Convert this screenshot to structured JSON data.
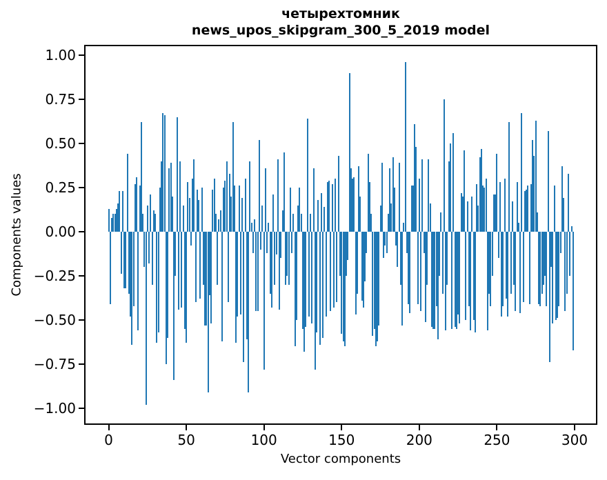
{
  "title": {
    "line1": "четырехтомник",
    "line2": "news_upos_skipgram_300_5_2019 model"
  },
  "chart_data": {
    "type": "bar",
    "title": "четырехтомник",
    "subtitle": "news_upos_skipgram_300_5_2019 model",
    "xlabel": "Vector components",
    "ylabel": "Components values",
    "bar_color": "#1f77b4",
    "grid": false,
    "legend": "none",
    "xlim": [
      -15.4,
      314.8
    ],
    "ylim": [
      -1.09,
      1.06
    ],
    "x_ticks": [
      {
        "v": 0,
        "label": "0"
      },
      {
        "v": 50,
        "label": "50"
      },
      {
        "v": 100,
        "label": "100"
      },
      {
        "v": 150,
        "label": "150"
      },
      {
        "v": 200,
        "label": "200"
      },
      {
        "v": 250,
        "label": "250"
      },
      {
        "v": 300,
        "label": "300"
      }
    ],
    "y_ticks": [
      {
        "v": 1.0,
        "label": "1.00"
      },
      {
        "v": 0.75,
        "label": "0.75"
      },
      {
        "v": 0.5,
        "label": "0.50"
      },
      {
        "v": 0.25,
        "label": "0.25"
      },
      {
        "v": 0.0,
        "label": "0.00"
      },
      {
        "v": -0.25,
        "label": "−0.25"
      },
      {
        "v": -0.5,
        "label": "−0.50"
      },
      {
        "v": -0.75,
        "label": "−0.75"
      },
      {
        "v": -1.0,
        "label": "−1.00"
      }
    ],
    "n_components": 300,
    "values": [
      0.13,
      -0.41,
      0.08,
      0.1,
      0.1,
      0.13,
      0.16,
      0.23,
      -0.24,
      0.23,
      -0.32,
      -0.32,
      0.44,
      -0.35,
      -0.48,
      -0.64,
      -0.42,
      0.27,
      0.31,
      -0.56,
      0.26,
      0.62,
      0.1,
      -0.2,
      -0.98,
      0.15,
      -0.18,
      0.21,
      -0.3,
      0.12,
      0.1,
      -0.63,
      -0.57,
      0.25,
      0.4,
      0.67,
      0.66,
      -0.75,
      -0.6,
      0.36,
      0.39,
      0.2,
      -0.84,
      -0.25,
      0.65,
      -0.44,
      0.4,
      -0.43,
      0.15,
      -0.55,
      -0.63,
      0.28,
      0.19,
      -0.08,
      0.3,
      0.41,
      -0.4,
      0.24,
      0.18,
      -0.38,
      0.25,
      -0.3,
      -0.53,
      -0.53,
      -0.91,
      -0.36,
      -0.52,
      0.24,
      0.3,
      0.1,
      -0.3,
      0.07,
      0.12,
      -0.62,
      0.25,
      0.29,
      0.4,
      -0.4,
      0.33,
      0.2,
      0.62,
      0.26,
      -0.63,
      -0.48,
      0.26,
      -0.47,
      0.19,
      -0.74,
      0.3,
      -0.61,
      -0.91,
      0.4,
      0.05,
      -0.12,
      0.07,
      -0.45,
      -0.45,
      0.52,
      -0.1,
      0.15,
      -0.78,
      0.36,
      -0.12,
      0.05,
      -0.35,
      -0.43,
      0.21,
      -0.3,
      -0.13,
      0.41,
      -0.44,
      -0.15,
      0.12,
      0.45,
      -0.3,
      -0.25,
      -0.3,
      0.25,
      -0.12,
      0.1,
      -0.65,
      -0.5,
      0.15,
      0.25,
      0.1,
      -0.55,
      -0.68,
      -0.54,
      0.64,
      -0.48,
      0.1,
      -0.52,
      0.36,
      -0.78,
      -0.57,
      0.18,
      -0.64,
      0.22,
      -0.6,
      0.14,
      -0.48,
      0.28,
      0.29,
      -0.45,
      0.27,
      -0.43,
      0.3,
      -0.4,
      0.43,
      -0.25,
      -0.58,
      -0.62,
      -0.65,
      -0.25,
      -0.16,
      0.9,
      0.36,
      0.3,
      0.31,
      -0.47,
      -0.35,
      0.37,
      0.2,
      -0.39,
      -0.43,
      -0.28,
      -0.12,
      0.44,
      0.28,
      0.1,
      -0.59,
      -0.55,
      -0.65,
      -0.62,
      -0.53,
      0.15,
      0.39,
      -0.15,
      -0.08,
      -0.12,
      0.1,
      0.36,
      0.16,
      0.42,
      0.25,
      -0.08,
      -0.2,
      0.39,
      -0.3,
      -0.53,
      0.05,
      0.96,
      -0.12,
      -0.41,
      -0.46,
      0.26,
      0.26,
      0.61,
      0.48,
      -0.41,
      0.3,
      -0.45,
      0.41,
      -0.12,
      -0.51,
      -0.3,
      0.41,
      0.16,
      -0.54,
      -0.55,
      -0.55,
      -0.42,
      -0.61,
      -0.25,
      0.11,
      -0.35,
      0.75,
      -0.56,
      -0.3,
      0.4,
      0.5,
      -0.55,
      0.56,
      -0.54,
      -0.55,
      -0.47,
      -0.52,
      0.22,
      0.2,
      0.46,
      -0.5,
      0.17,
      -0.42,
      -0.56,
      0.2,
      -0.5,
      -0.57,
      0.27,
      0.15,
      0.42,
      0.47,
      0.26,
      0.25,
      0.3,
      -0.56,
      -0.35,
      -0.42,
      -0.25,
      0.21,
      0.21,
      0.44,
      -0.15,
      0.28,
      -0.48,
      -0.42,
      0.3,
      -0.38,
      -0.48,
      0.62,
      -0.35,
      0.17,
      -0.3,
      -0.45,
      0.28,
      0.05,
      -0.46,
      0.67,
      -0.4,
      0.23,
      0.24,
      0.26,
      -0.41,
      0.27,
      0.52,
      0.43,
      0.63,
      0.11,
      -0.41,
      -0.42,
      -0.35,
      -0.3,
      -0.25,
      -0.42,
      0.57,
      -0.74,
      -0.2,
      -0.52,
      0.26,
      -0.5,
      -0.49,
      -0.42,
      -0.12,
      0.37,
      0.19,
      -0.45,
      -0.35,
      0.33,
      -0.25,
      0.03,
      -0.67
    ]
  }
}
